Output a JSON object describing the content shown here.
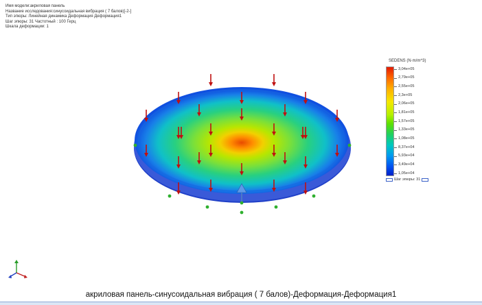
{
  "info": {
    "model_name": "Имя модели:акриловая панель",
    "study_name": "Название исследования:синусоидальная вибрация ( 7 балов)[-2-]",
    "plot_type": "Тип эпюры: Линейная динамика Деформация Деформация1",
    "plot_step": "Шаг эпюры: 31 Частотный : 100 Герц",
    "deformation_scale": "Шкала деформации: 1"
  },
  "legend": {
    "title": "SEDENS (N·m/m^3)",
    "ticks": [
      "3,04e+05",
      "2,79e+05",
      "2,55e+05",
      "2,3e+05",
      "2,06e+05",
      "1,81e+05",
      "1,57e+05",
      "1,33e+05",
      "1,08e+05",
      "8,37e+04",
      "5,93e+04",
      "3,49e+04",
      "1,05e+04"
    ],
    "footer": "Шаг эпюры: 31"
  },
  "caption": "акриловая панель-синусоидальная вибрация ( 7 балов)-Деформация-Деформация1",
  "colors": {
    "load_arrow": "#c01010",
    "fixture": "#2fb02f",
    "accent": "#3b62c8"
  },
  "icons": {
    "triad": "coordinate-triad-icon",
    "load": "down-arrow-icon",
    "fixture": "green-dot-icon",
    "cone": "cone-icon"
  }
}
